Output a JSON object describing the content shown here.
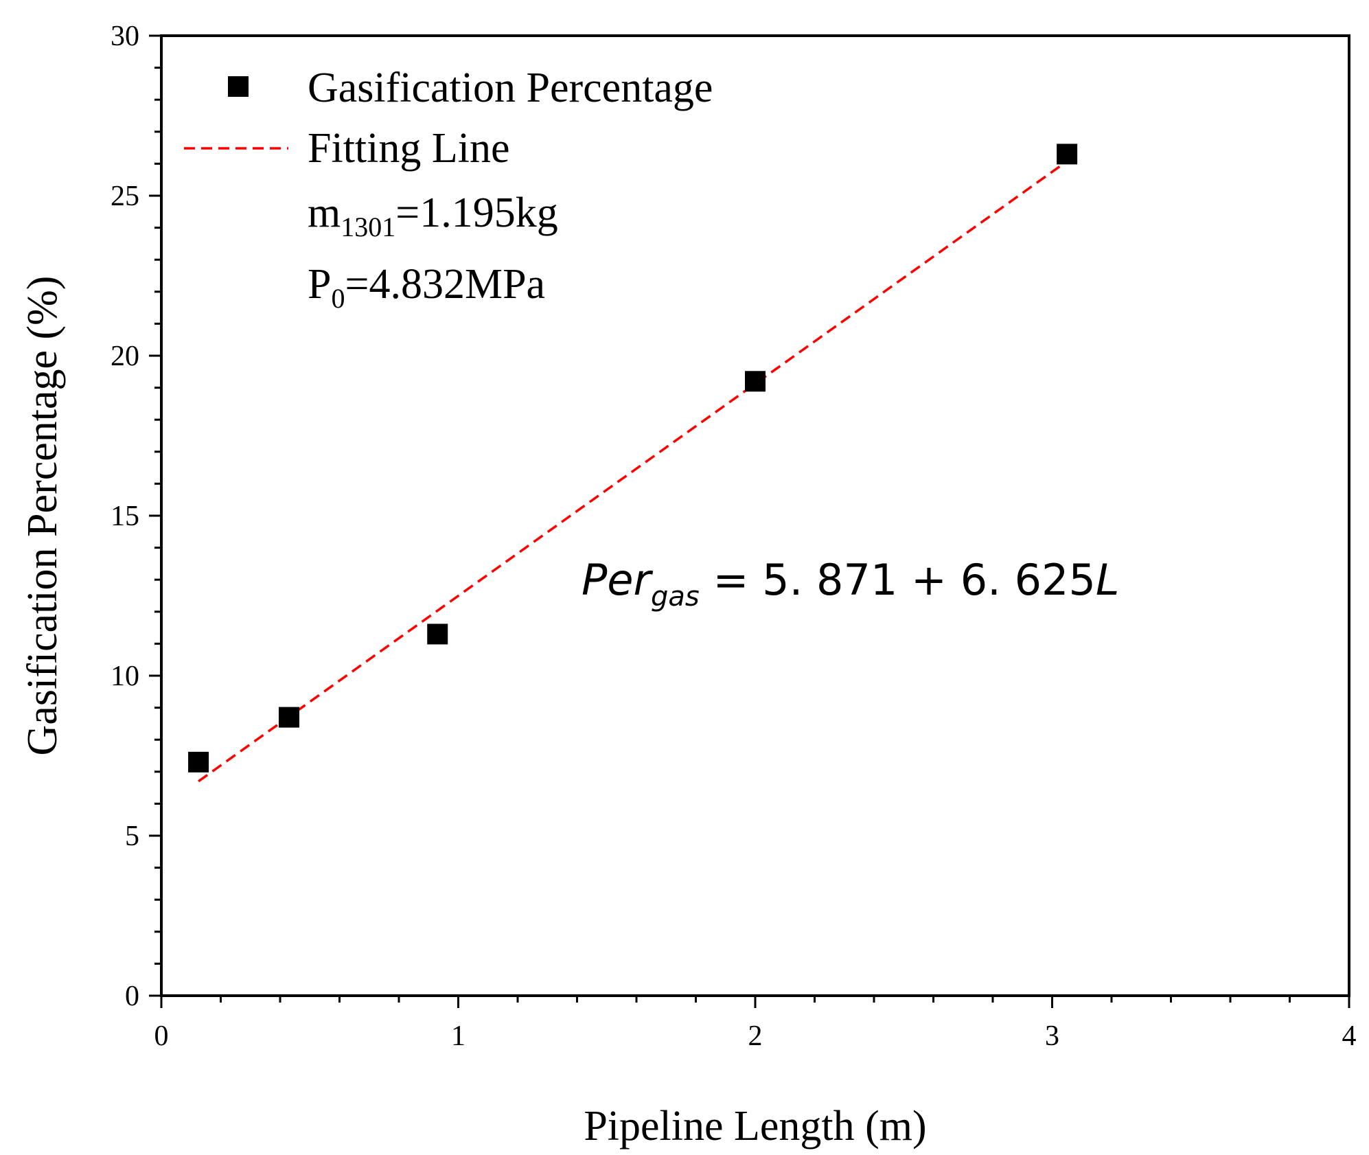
{
  "chart_data": {
    "type": "scatter",
    "xlabel": "Pipeline Length (m)",
    "ylabel": "Gasification Percentage (%)",
    "xlim": [
      0,
      4
    ],
    "ylim": [
      0,
      30
    ],
    "x_ticks": [
      "0",
      "1",
      "2",
      "3",
      "4"
    ],
    "y_ticks": [
      "0",
      "5",
      "10",
      "15",
      "20",
      "25",
      "30"
    ],
    "grid": false,
    "legend_position": "top-left",
    "series": [
      {
        "name": "Gasification Percentage",
        "marker": "square",
        "color": "#000000",
        "x": [
          0.125,
          0.43,
          0.93,
          2.0,
          3.05
        ],
        "y": [
          7.3,
          8.7,
          11.3,
          19.2,
          26.3
        ]
      },
      {
        "name": "Fitting Line",
        "style": "dashed",
        "color": "#ff0000",
        "intercept": 5.871,
        "slope": 6.625,
        "x_range": [
          0.125,
          3.05
        ]
      }
    ],
    "annotations": {
      "mass_symbol": "m",
      "mass_subscript": "1301",
      "mass_value": "=1.195kg",
      "pressure_symbol": "P",
      "pressure_subscript": "0",
      "pressure_value": "=4.832MPa",
      "equation_lhs": "Per",
      "equation_lhs_subscript": "gas",
      "equation_rhs": " = 5. 871 + 6. 625",
      "equation_variable": "L"
    }
  }
}
